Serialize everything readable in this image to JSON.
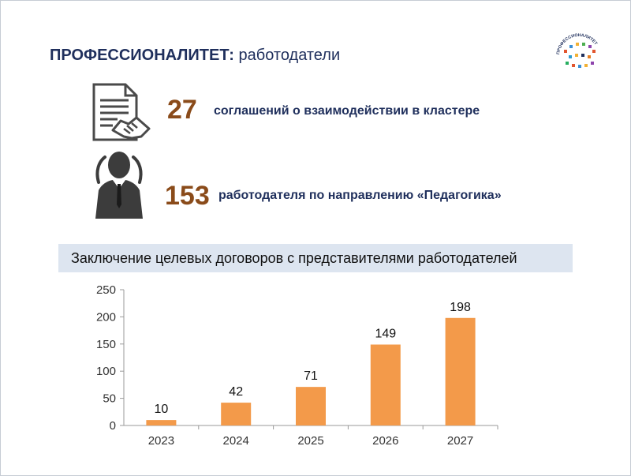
{
  "title": {
    "bold": "ПРОФЕССИОНАЛИТЕТ:",
    "rest": "работодатели"
  },
  "logo": {
    "text": "ПРОФЕССИОНАЛИТЕТ",
    "icon": "professionalitet-logo"
  },
  "stats": [
    {
      "value": "27",
      "label": "соглашений о взаимодействии в кластере",
      "icon": "agreement-document-icon"
    },
    {
      "value": "153",
      "label": "работодателя по направлению «Педагогика»",
      "icon": "employer-person-icon"
    }
  ],
  "banner": {
    "text": "Заключение целевых договоров с представителями работодателей"
  },
  "colors": {
    "accent_number": "#8a4b1a",
    "navy": "#1f2f5c",
    "bar": "#f39a4a",
    "banner_bg": "#dde5f0"
  },
  "chart_data": {
    "type": "bar",
    "categories": [
      "2023",
      "2024",
      "2025",
      "2026",
      "2027"
    ],
    "values": [
      10,
      42,
      71,
      149,
      198
    ],
    "ylim": [
      0,
      250
    ],
    "yticks": [
      0,
      50,
      100,
      150,
      200,
      250
    ],
    "title": "",
    "xlabel": "",
    "ylabel": "",
    "grid": false,
    "legend": false,
    "data_labels": true
  }
}
